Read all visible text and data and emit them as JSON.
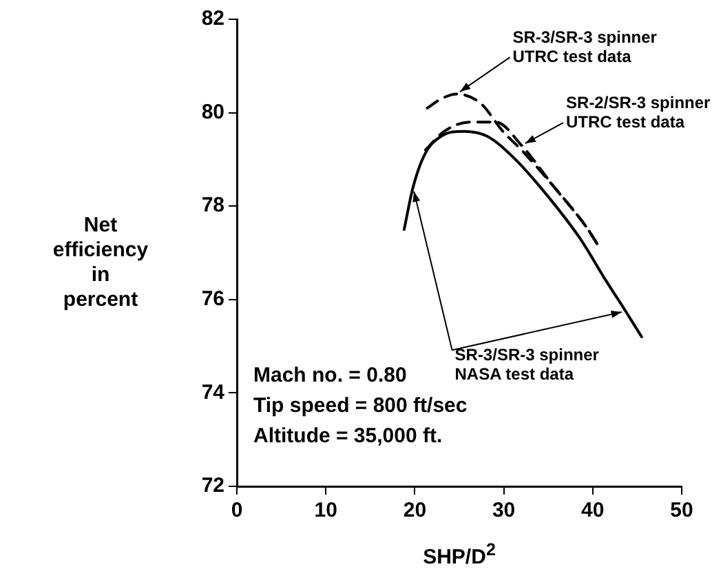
{
  "chart_data": {
    "type": "line",
    "xlabel": "SHP/D$^{2}$",
    "ylabel": "Net\nefficiency\nin\npercent",
    "xlim": [
      0,
      50
    ],
    "xticks": [
      0,
      10,
      20,
      30,
      40,
      50
    ],
    "ylim": [
      72,
      82
    ],
    "yticks": [
      72,
      74,
      76,
      78,
      80,
      82
    ],
    "grid": false,
    "legend": false,
    "marker": "none",
    "series": [
      {
        "name": "SR-3/SR-3 spinner\nUTRC test data",
        "color": "#000000",
        "line_style": "dashed",
        "x": [
          21.4,
          23.0,
          24.7,
          27.4,
          29.9,
          32.0,
          35.7,
          39.1,
          40.5
        ],
        "values": [
          80.1,
          80.3,
          80.4,
          80.2,
          79.6,
          79.2,
          78.4,
          77.6,
          77.2
        ]
      },
      {
        "name": "SR-2/SR-3 spinner\nUTRC test data",
        "color": "#000000",
        "line_style": "dashed",
        "x": [
          21.2,
          23.3,
          26.2,
          29.1,
          32.0,
          35.7,
          39.1,
          40.8
        ],
        "values": [
          79.2,
          79.6,
          79.8,
          79.8,
          79.3,
          78.4,
          77.6,
          77.1
        ]
      },
      {
        "name": "SR-3/SR-3 spinner\nNASA test data",
        "color": "#000000",
        "line_style": "solid",
        "x": [
          18.8,
          19.8,
          21.1,
          23.0,
          25.5,
          28.1,
          31.3,
          35.0,
          38.6,
          41.5,
          43.7,
          45.5
        ],
        "values": [
          77.5,
          78.4,
          79.1,
          79.5,
          79.6,
          79.5,
          79.0,
          78.2,
          77.3,
          76.4,
          75.75,
          75.2
        ]
      }
    ],
    "annotations": [
      "Mach no. = 0.80",
      "Tip speed = 800 ft/sec",
      "Altitude = 35,000 ft."
    ]
  }
}
